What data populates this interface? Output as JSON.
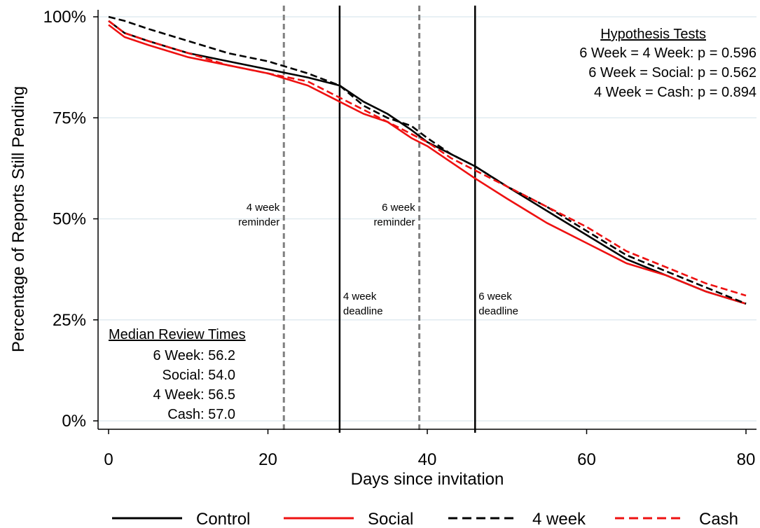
{
  "chart_data": {
    "type": "line",
    "xlabel": "Days since invitation",
    "ylabel": "Percentage of Reports Still Pending",
    "xlim": [
      0,
      80
    ],
    "ylim": [
      0,
      100
    ],
    "xticks": [
      0,
      20,
      40,
      60,
      80
    ],
    "xtick_labels": [
      "0",
      "20",
      "40",
      "60",
      "80"
    ],
    "yticks": [
      0,
      25,
      50,
      75,
      100
    ],
    "ytick_labels": [
      "0%",
      "25%",
      "50%",
      "75%",
      "100%"
    ],
    "grid": "horizontal",
    "legend_position": "bottom",
    "series": [
      {
        "name": "Control",
        "color": "#000000",
        "dash": "solid",
        "x": [
          0,
          2,
          5,
          10,
          15,
          20,
          25,
          29,
          32,
          35,
          38,
          40,
          43,
          46,
          50,
          55,
          60,
          65,
          70,
          75,
          80
        ],
        "y": [
          99,
          96,
          94,
          91,
          89,
          87,
          85,
          83,
          79,
          76,
          72,
          69,
          66,
          63,
          58,
          52,
          46,
          40,
          36,
          32,
          29
        ]
      },
      {
        "name": "Social",
        "color": "#ee1111",
        "dash": "solid",
        "x": [
          0,
          2,
          5,
          10,
          15,
          20,
          25,
          29,
          32,
          35,
          38,
          40,
          43,
          46,
          50,
          55,
          60,
          65,
          70,
          75,
          80
        ],
        "y": [
          98,
          95,
          93,
          90,
          88,
          86,
          83,
          79,
          76,
          74,
          70,
          68,
          64,
          60,
          55,
          49,
          44,
          39,
          36,
          32,
          29
        ]
      },
      {
        "name": "4 week",
        "color": "#000000",
        "dash": "dash",
        "x": [
          0,
          2,
          5,
          10,
          15,
          20,
          25,
          29,
          32,
          35,
          38,
          40,
          43,
          46,
          50,
          55,
          60,
          65,
          70,
          75,
          80
        ],
        "y": [
          100,
          99,
          97,
          94,
          91,
          89,
          86,
          83,
          78,
          75,
          73,
          70,
          66,
          63,
          58,
          53,
          47,
          41,
          37,
          33,
          29
        ]
      },
      {
        "name": "Cash",
        "color": "#ee1111",
        "dash": "dash",
        "x": [
          0,
          2,
          5,
          10,
          15,
          20,
          25,
          29,
          32,
          35,
          38,
          40,
          43,
          46,
          50,
          55,
          60,
          65,
          70,
          75,
          80
        ],
        "y": [
          99,
          96,
          94,
          91,
          88,
          86,
          84,
          80,
          77,
          74,
          71,
          69,
          65,
          62,
          58,
          53,
          48,
          42,
          38,
          34,
          31
        ]
      }
    ],
    "reference_lines": [
      {
        "x": 22,
        "style": "dashed",
        "color": "#808080",
        "label_lines": [
          "4 week",
          "reminder"
        ],
        "label_side": "left",
        "label_y": 52
      },
      {
        "x": 29,
        "style": "solid",
        "color": "#000000",
        "label_lines": [
          "4 week",
          "deadline"
        ],
        "label_side": "right",
        "label_y": 30
      },
      {
        "x": 39,
        "style": "dashed",
        "color": "#808080",
        "label_lines": [
          "6 week",
          "reminder"
        ],
        "label_side": "left",
        "label_y": 52
      },
      {
        "x": 46,
        "style": "solid",
        "color": "#000000",
        "label_lines": [
          "6 week",
          "deadline"
        ],
        "label_side": "right",
        "label_y": 30
      }
    ],
    "hypothesis_tests": {
      "title": "Hypothesis Tests",
      "rows": [
        "6 Week = 4 Week:  p = 0.596",
        "6 Week = Social:  p = 0.562",
        "4 Week = Cash:  p = 0.894"
      ]
    },
    "median_review_times": {
      "title": "Median Review Times",
      "rows": [
        "6 Week: 56.2",
        "Social: 54.0",
        "4 Week: 56.5",
        "Cash: 57.0"
      ]
    }
  }
}
